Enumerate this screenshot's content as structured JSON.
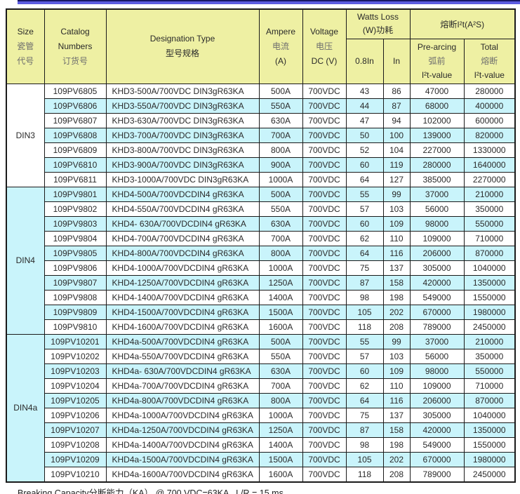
{
  "colors": {
    "header_bg": "#EEF0A3",
    "row_stripe": "#C9F4FB",
    "border": "#1A1A1A",
    "accent_bar": "#5C5CE0",
    "accent_bar_top": "#181866"
  },
  "table": {
    "header": {
      "size_lines": [
        "Size",
        "瓷管",
        "代号"
      ],
      "catalog_lines": [
        "Catalog",
        "Numbers",
        "订货号"
      ],
      "designation_lines": [
        "Designation Type",
        "型号规格"
      ],
      "ampere_lines": [
        "Ampere",
        "电流",
        "(A)"
      ],
      "voltage_lines": [
        "Voltage",
        "电压",
        "DC (V)"
      ],
      "watts_loss_lines": [
        "Watts Loss",
        "(W)功耗"
      ],
      "i2t_title": "熔断I²t(A²S)",
      "sub_0_8in": "0.8In",
      "sub_in": "In",
      "pre_arcing_lines": [
        "Pre-arcing",
        "弧前",
        "I²t-value"
      ],
      "total_lines": [
        "Total",
        "熔断",
        "I²t-value"
      ]
    },
    "groups": [
      {
        "size": "DIN3",
        "rows": [
          [
            "109PV6805",
            "KHD3-500A/700VDC DIN3gR63KA",
            "500A",
            "700VDC",
            "43",
            "86",
            "47000",
            "280000"
          ],
          [
            "109PV6806",
            "KHD3-550A/700VDC DIN3gR63KA",
            "550A",
            "700VDC",
            "44",
            "87",
            "68000",
            "400000"
          ],
          [
            "109PV6807",
            "KHD3-630A/700VDC DIN3gR63KA",
            "630A",
            "700VDC",
            "47",
            "94",
            "102000",
            "600000"
          ],
          [
            "109PV6808",
            "KHD3-700A/700VDC DIN3gR63KA",
            "700A",
            "700VDC",
            "50",
            "100",
            "139000",
            "820000"
          ],
          [
            "109PV6809",
            "KHD3-800A/700VDC DIN3gR63KA",
            "800A",
            "700VDC",
            "52",
            "104",
            "227000",
            "1330000"
          ],
          [
            "109PV6810",
            "KHD3-900A/700VDC DIN3gR63KA",
            "900A",
            "700VDC",
            "60",
            "119",
            "280000",
            "1640000"
          ],
          [
            "109PV6811",
            "KHD3-1000A/700VDC DIN3gR63KA",
            "1000A",
            "700VDC",
            "64",
            "127",
            "385000",
            "2270000"
          ]
        ]
      },
      {
        "size": "DIN4",
        "rows": [
          [
            "109PV9801",
            "KHD4-500A/700VDCDIN4 gR63KA",
            "500A",
            "700VDC",
            "55",
            "99",
            "37000",
            "210000"
          ],
          [
            "109PV9802",
            "KHD4-550A/700VDCDIN4 gR63KA",
            "550A",
            "700VDC",
            "57",
            "103",
            "56000",
            "350000"
          ],
          [
            "109PV9803",
            "KHD4- 630A/700VDCDIN4 gR63KA",
            "630A",
            "700VDC",
            "60",
            "109",
            "98000",
            "550000"
          ],
          [
            "109PV9804",
            "KHD4-700A/700VDCDIN4 gR63KA",
            "700A",
            "700VDC",
            "62",
            "110",
            "109000",
            "710000"
          ],
          [
            "109PV9805",
            "KHD4-800A/700VDCDIN4 gR63KA",
            "800A",
            "700VDC",
            "64",
            "116",
            "206000",
            "870000"
          ],
          [
            "109PV9806",
            "KHD4-1000A/700VDCDIN4 gR63KA",
            "1000A",
            "700VDC",
            "75",
            "137",
            "305000",
            "1040000"
          ],
          [
            "109PV9807",
            "KHD4-1250A/700VDCDIN4 gR63KA",
            "1250A",
            "700VDC",
            "87",
            "158",
            "420000",
            "1350000"
          ],
          [
            "109PV9808",
            "KHD4-1400A/700VDCDIN4 gR63KA",
            "1400A",
            "700VDC",
            "98",
            "198",
            "549000",
            "1550000"
          ],
          [
            "109PV9809",
            "KHD4-1500A/700VDCDIN4 gR63KA",
            "1500A",
            "700VDC",
            "105",
            "202",
            "670000",
            "1980000"
          ],
          [
            "109PV9810",
            "KHD4-1600A/700VDCDIN4 gR63KA",
            "1600A",
            "700VDC",
            "118",
            "208",
            "789000",
            "2450000"
          ]
        ]
      },
      {
        "size": "DIN4a",
        "rows": [
          [
            "109PV10201",
            "KHD4a-500A/700VDCDIN4 gR63KA",
            "500A",
            "700VDC",
            "55",
            "99",
            "37000",
            "210000"
          ],
          [
            "109PV10202",
            "KHD4a-550A/700VDCDIN4 gR63KA",
            "550A",
            "700VDC",
            "57",
            "103",
            "56000",
            "350000"
          ],
          [
            "109PV10203",
            "KHD4a- 630A/700VDCDIN4 gR63KA",
            "630A",
            "700VDC",
            "60",
            "109",
            "98000",
            "550000"
          ],
          [
            "109PV10204",
            "KHD4a-700A/700VDCDIN4 gR63KA",
            "700A",
            "700VDC",
            "62",
            "110",
            "109000",
            "710000"
          ],
          [
            "109PV10205",
            "KHD4a-800A/700VDCDIN4 gR63KA",
            "800A",
            "700VDC",
            "64",
            "116",
            "206000",
            "870000"
          ],
          [
            "109PV10206",
            "KHD4a-1000A/700VDCDIN4 gR63KA",
            "1000A",
            "700VDC",
            "75",
            "137",
            "305000",
            "1040000"
          ],
          [
            "109PV10207",
            "KHD4a-1250A/700VDCDIN4 gR63KA",
            "1250A",
            "700VDC",
            "87",
            "158",
            "420000",
            "1350000"
          ],
          [
            "109PV10208",
            "KHD4a-1400A/700VDCDIN4 gR63KA",
            "1400A",
            "700VDC",
            "98",
            "198",
            "549000",
            "1550000"
          ],
          [
            "109PV10209",
            "KHD4a-1500A/700VDCDIN4 gR63KA",
            "1500A",
            "700VDC",
            "105",
            "202",
            "670000",
            "1980000"
          ],
          [
            "109PV10210",
            "KHD4a-1600A/700VDCDIN4 gR63KA",
            "1600A",
            "700VDC",
            "118",
            "208",
            "789000",
            "2450000"
          ]
        ]
      }
    ]
  },
  "footer": {
    "text": "Breaking Capacity分断能力（KA） @ 700 VDC=63KA   L/R = 15 ms"
  }
}
